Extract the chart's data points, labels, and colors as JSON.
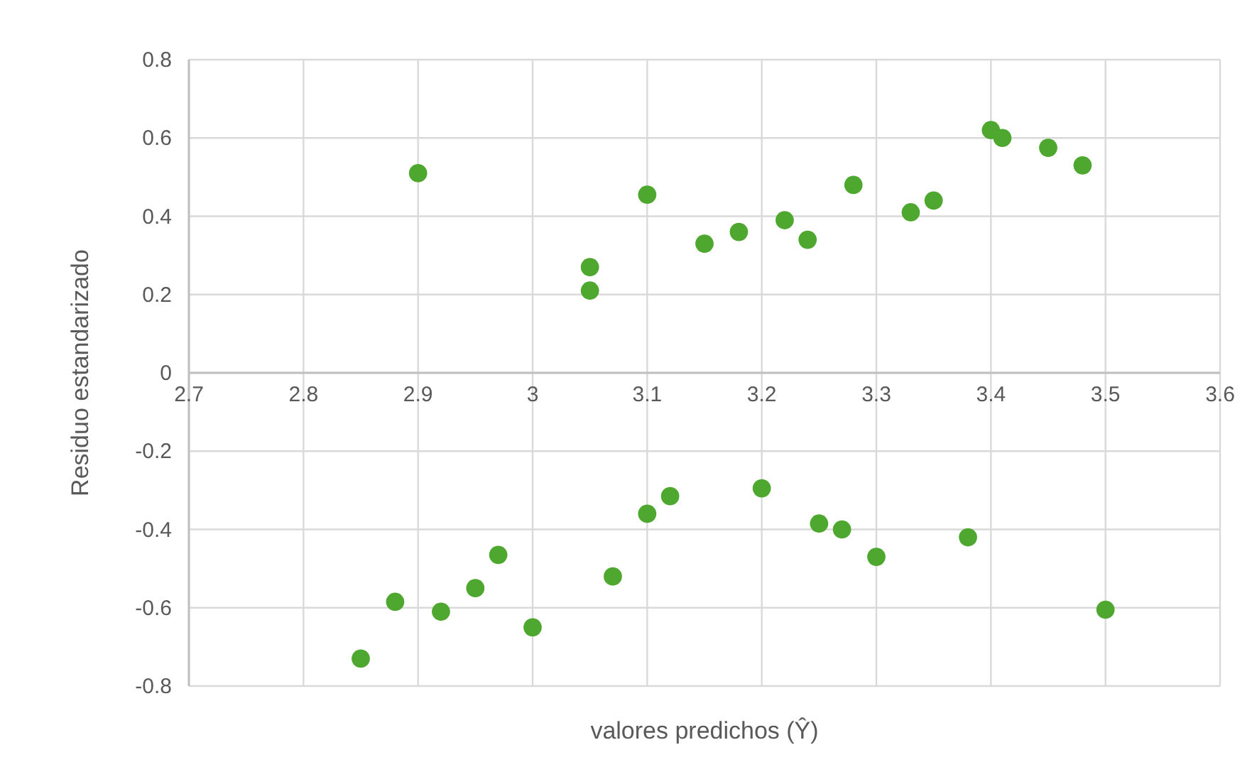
{
  "chart_data": {
    "type": "scatter",
    "xlabel": "valores predichos (Ŷ)",
    "ylabel": "Residuo estandarizado",
    "xlim": [
      2.7,
      3.6
    ],
    "xticks": [
      2.7,
      2.8,
      2.9,
      3,
      3.1,
      3.2,
      3.3,
      3.4,
      3.5,
      3.6
    ],
    "ylim": [
      -0.8,
      0.8
    ],
    "yticks": [
      -0.8,
      -0.6,
      -0.4,
      -0.2,
      0,
      0.2,
      0.4,
      0.6,
      0.8
    ],
    "grid": true,
    "marker": "circle",
    "color": "#4ea72e",
    "x": [
      2.9,
      3.1,
      3.05,
      3.05,
      3.15,
      3.18,
      3.22,
      3.24,
      3.28,
      3.33,
      3.35,
      3.4,
      3.41,
      3.45,
      3.48,
      2.85,
      2.88,
      2.92,
      2.95,
      2.97,
      3.0,
      3.07,
      3.1,
      3.12,
      3.2,
      3.25,
      3.27,
      3.3,
      3.38,
      3.5
    ],
    "values": [
      0.51,
      0.455,
      0.27,
      0.21,
      0.33,
      0.36,
      0.39,
      0.34,
      0.48,
      0.41,
      0.44,
      0.62,
      0.6,
      0.575,
      0.53,
      -0.73,
      -0.585,
      -0.61,
      -0.55,
      -0.465,
      -0.65,
      -0.52,
      -0.36,
      -0.315,
      -0.295,
      -0.385,
      -0.4,
      -0.47,
      -0.42,
      -0.605
    ]
  }
}
